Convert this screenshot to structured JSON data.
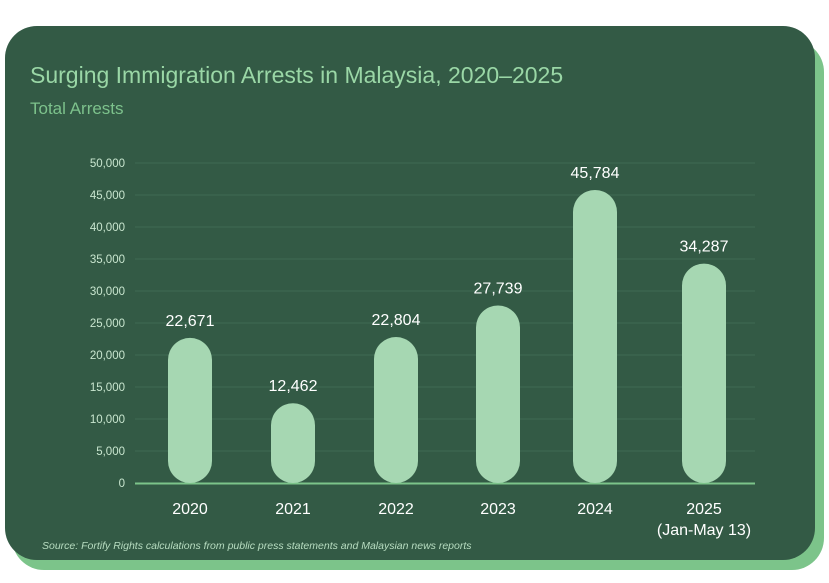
{
  "chart_data": {
    "type": "bar",
    "title": "Surging Immigration Arrests in Malaysia, 2020–2025",
    "subtitle": "Total Arrests",
    "categories": [
      "2020",
      "2021",
      "2022",
      "2023",
      "2024",
      "2025"
    ],
    "category_sublabels": [
      "",
      "",
      "",
      "",
      "",
      "(Jan-May 13)"
    ],
    "values": [
      22671,
      12462,
      22804,
      27739,
      45784,
      34287
    ],
    "value_labels": [
      "22,671",
      "12,462",
      "22,804",
      "27,739",
      "45,784",
      "34,287"
    ],
    "ylim": [
      0,
      50000
    ],
    "yticks": [
      0,
      5000,
      10000,
      15000,
      20000,
      25000,
      30000,
      35000,
      40000,
      45000,
      50000
    ],
    "ytick_labels": [
      "0",
      "5,000",
      "10,000",
      "15,000",
      "20,000",
      "25,000",
      "30,000",
      "35,000",
      "40,000",
      "45,000",
      "50,000"
    ],
    "grid": true,
    "source": "Source: Fortify Rights calculations from public press statements and Malaysian news reports"
  },
  "colors": {
    "background": "#335a45",
    "bar": "#a6d7b2",
    "accent": "#7cc48a",
    "gridline": "#3f6a53"
  }
}
